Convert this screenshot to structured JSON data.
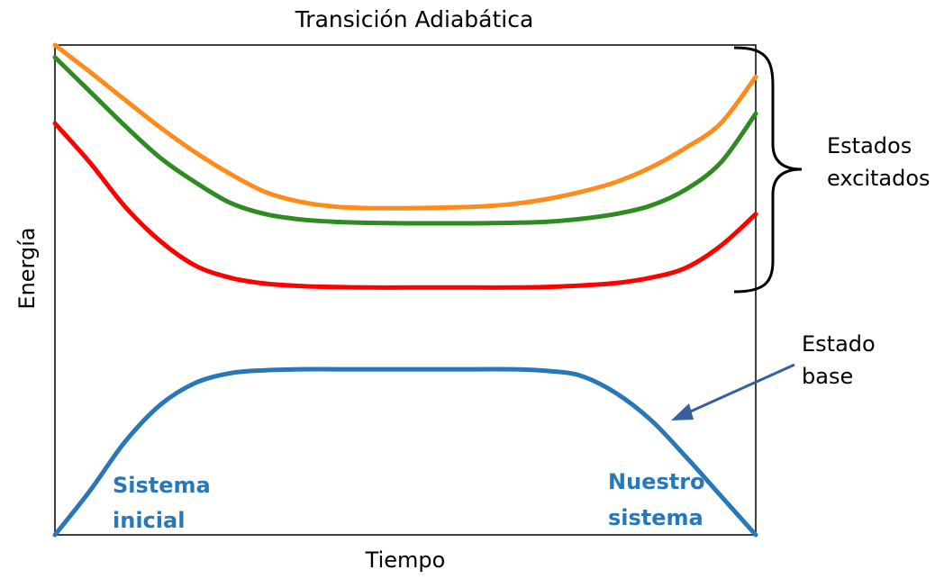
{
  "chart_data": {
    "type": "line",
    "title": "Transición Adiabática",
    "xlabel": "Tiempo",
    "ylabel": "Energía",
    "xlim": [
      0,
      1
    ],
    "ylim": [
      0,
      1
    ],
    "grid": false,
    "x": [
      0,
      0.05,
      0.1,
      0.15,
      0.2,
      0.25,
      0.3,
      0.35,
      0.4,
      0.45,
      0.5,
      0.55,
      0.6,
      0.65,
      0.7,
      0.75,
      0.8,
      0.85,
      0.9,
      0.95,
      1
    ],
    "series": [
      {
        "color": "#ff8c1a",
        "values": [
          1.0,
          0.945,
          0.888,
          0.832,
          0.781,
          0.737,
          0.7,
          0.68,
          0.67,
          0.667,
          0.667,
          0.668,
          0.67,
          0.675,
          0.685,
          0.7,
          0.72,
          0.75,
          0.79,
          0.84,
          0.935
        ]
      },
      {
        "color": "#2e8b22",
        "values": [
          0.975,
          0.905,
          0.835,
          0.77,
          0.72,
          0.678,
          0.655,
          0.644,
          0.639,
          0.637,
          0.636,
          0.636,
          0.636,
          0.637,
          0.639,
          0.645,
          0.655,
          0.672,
          0.705,
          0.76,
          0.86
        ]
      },
      {
        "color": "#ff0000",
        "values": [
          0.84,
          0.76,
          0.67,
          0.6,
          0.55,
          0.525,
          0.513,
          0.508,
          0.506,
          0.505,
          0.505,
          0.505,
          0.505,
          0.505,
          0.506,
          0.509,
          0.514,
          0.525,
          0.545,
          0.59,
          0.655
        ]
      },
      {
        "color": "#2878b8",
        "values": [
          0.0,
          0.09,
          0.19,
          0.265,
          0.31,
          0.33,
          0.336,
          0.338,
          0.338,
          0.338,
          0.338,
          0.338,
          0.338,
          0.338,
          0.335,
          0.325,
          0.29,
          0.235,
          0.16,
          0.08,
          0.0
        ]
      }
    ],
    "annotations": {
      "excited": [
        "Estados",
        "excitados"
      ],
      "ground": [
        "Estado",
        "base"
      ],
      "initial": [
        "Sistema",
        "inicial"
      ],
      "ours": [
        "Nuestro",
        "sistema"
      ]
    }
  }
}
